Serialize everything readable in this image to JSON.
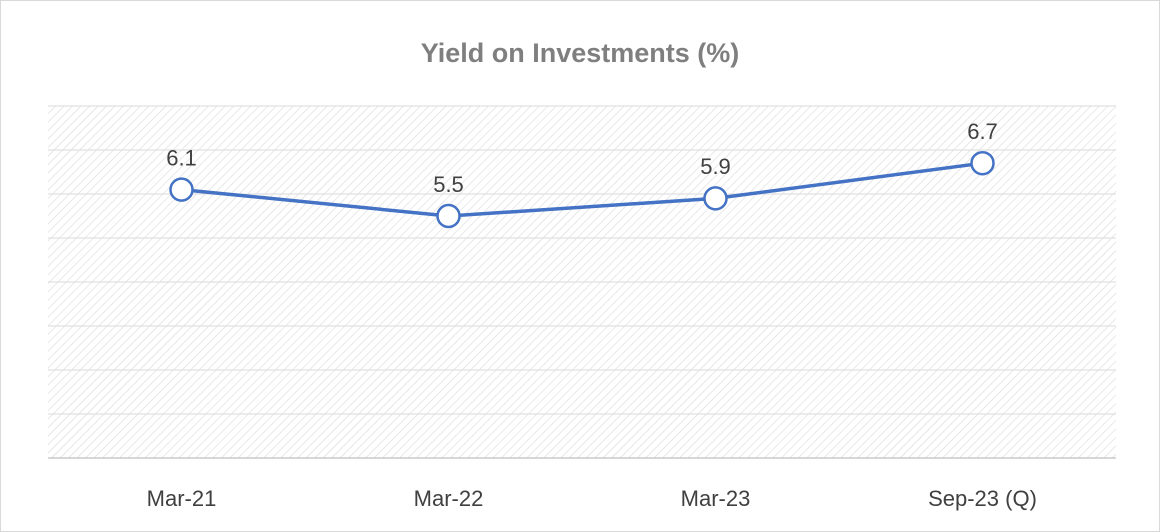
{
  "chart_data": {
    "type": "line",
    "title": "Yield on Investments (%)",
    "categories": [
      "Mar-21",
      "Mar-22",
      "Mar-23",
      "Sep-23 (Q)"
    ],
    "series": [
      {
        "name": "Yield on Investments",
        "color": "#4472c4",
        "values": [
          6.1,
          5.5,
          5.9,
          6.7
        ]
      }
    ],
    "ylim": [
      0,
      8
    ],
    "yticks": [
      0,
      1,
      2,
      3,
      4,
      5,
      6,
      7,
      8
    ],
    "grid": true
  }
}
